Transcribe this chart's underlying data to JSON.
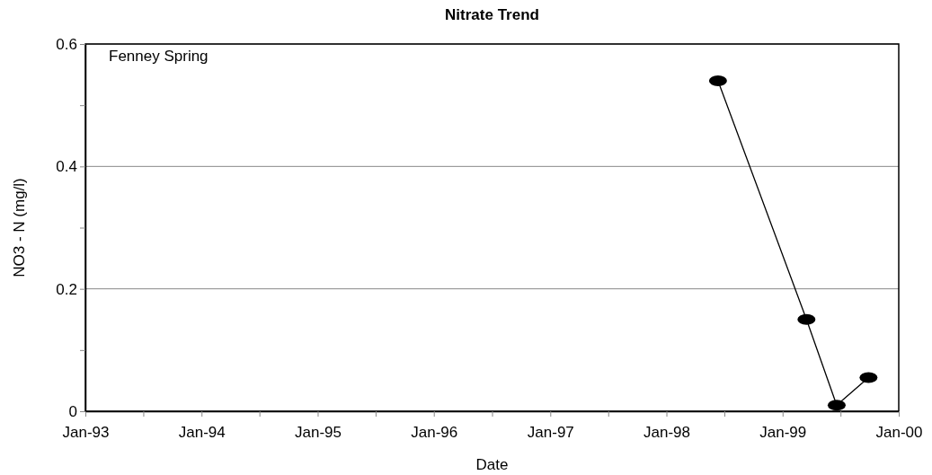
{
  "chart_data": {
    "type": "line",
    "title": "Nitrate Trend",
    "xlabel": "Date",
    "ylabel": "NO3 - N (mg/l)",
    "annotations": [
      "Fenney Spring"
    ],
    "x": [
      "1998-06-12",
      "1999-03-17",
      "1999-06-20",
      "1999-09-28"
    ],
    "series": [
      {
        "color": "#000000",
        "values": [
          0.54,
          0.15,
          0.01,
          0.055
        ]
      }
    ],
    "xlim": [
      "1993-01-01",
      "2000-01-01"
    ],
    "xticks": [
      {
        "value": "1993-01-01",
        "label": "Jan-93"
      },
      {
        "value": "1993-07-02",
        "label": null
      },
      {
        "value": "1994-01-01",
        "label": "Jan-94"
      },
      {
        "value": "1994-07-02",
        "label": null
      },
      {
        "value": "1995-01-01",
        "label": "Jan-95"
      },
      {
        "value": "1995-07-02",
        "label": null
      },
      {
        "value": "1996-01-01",
        "label": "Jan-96"
      },
      {
        "value": "1996-07-02",
        "label": null
      },
      {
        "value": "1997-01-01",
        "label": "Jan-97"
      },
      {
        "value": "1997-07-02",
        "label": null
      },
      {
        "value": "1998-01-01",
        "label": "Jan-98"
      },
      {
        "value": "1998-07-02",
        "label": null
      },
      {
        "value": "1999-01-01",
        "label": "Jan-99"
      },
      {
        "value": "1999-07-02",
        "label": null
      },
      {
        "value": "2000-01-01",
        "label": "Jan-00"
      }
    ],
    "ylim": [
      0,
      0.6
    ],
    "yticks": [
      0,
      {
        "value": 0.1,
        "label": null
      },
      0.2,
      {
        "value": 0.3,
        "label": null
      },
      0.4,
      {
        "value": 0.5,
        "label": null
      },
      0.6
    ],
    "grid": "y",
    "marker": "circle",
    "line_style": "solid"
  }
}
